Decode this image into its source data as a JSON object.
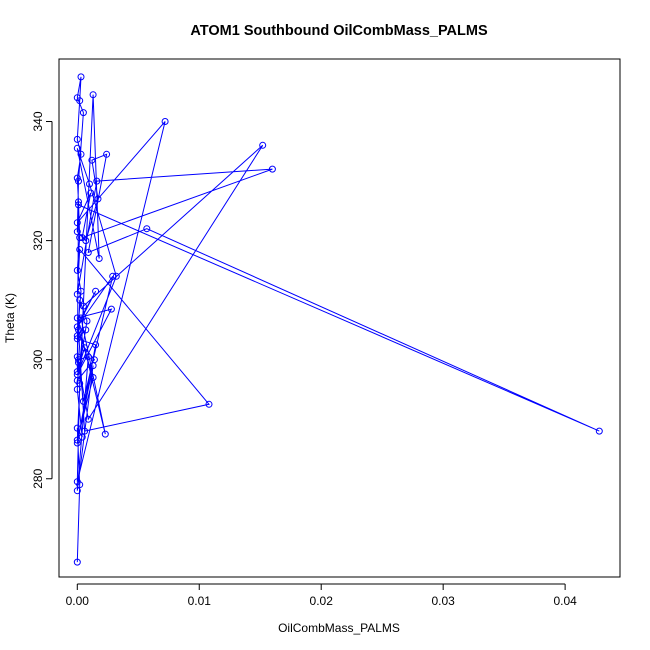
{
  "chart_data": {
    "type": "line",
    "title": "ATOM1 Southbound OilCombMass_PALMS",
    "xlabel": "OilCombMass_PALMS",
    "ylabel": "Theta (K)",
    "xlim": [
      -0.0015,
      0.0445
    ],
    "ylim": [
      263.5,
      350.5
    ],
    "xticks": [
      0.0,
      0.01,
      0.02,
      0.03,
      0.04
    ],
    "xtick_labels": [
      "0.00",
      "0.01",
      "0.02",
      "0.03",
      "0.04"
    ],
    "yticks": [
      280,
      300,
      320,
      340
    ],
    "ytick_labels": [
      "280",
      "300",
      "320",
      "340"
    ],
    "grid": false,
    "legend": "none",
    "markers": "open-circle",
    "series": [
      {
        "color": "#0000ff",
        "points": [
          [
            0.0,
            266.0
          ],
          [
            0.0002,
            279.0
          ],
          [
            0.0,
            288.5
          ],
          [
            0.0004,
            287.0
          ],
          [
            0.0,
            295.0
          ],
          [
            0.0001,
            299.5
          ],
          [
            0.0,
            304.0
          ],
          [
            0.0003,
            311.5
          ],
          [
            0.0,
            315.0
          ],
          [
            0.0002,
            320.5
          ],
          [
            0.0001,
            326.5
          ],
          [
            0.0,
            330.5
          ],
          [
            0.0003,
            334.5
          ],
          [
            0.0,
            337.0
          ],
          [
            0.0002,
            343.5
          ],
          [
            0.0003,
            347.5
          ],
          [
            0.0,
            344.0
          ],
          [
            0.0005,
            341.5
          ],
          [
            0.0001,
            330.0
          ],
          [
            0.0,
            321.5
          ],
          [
            0.0007,
            320.0
          ],
          [
            0.0017,
            327.0
          ],
          [
            0.0012,
            333.5
          ],
          [
            0.0024,
            334.5
          ],
          [
            0.0009,
            318.0
          ],
          [
            0.0057,
            322.0
          ],
          [
            0.0428,
            288.0
          ],
          [
            0.0001,
            326.0
          ],
          [
            0.0,
            298.0
          ],
          [
            0.0006,
            302.0
          ],
          [
            0.0014,
            300.0
          ],
          [
            0.0,
            296.5
          ],
          [
            0.0008,
            306.5
          ],
          [
            0.0002,
            310.0
          ],
          [
            0.0,
            300.5
          ],
          [
            0.0009,
            290.0
          ],
          [
            0.0152,
            336.0
          ],
          [
            0.0005,
            309.0
          ],
          [
            0.0,
            286.5
          ],
          [
            0.0013,
            297.0
          ],
          [
            0.0001,
            305.0
          ],
          [
            0.0006,
            288.0
          ],
          [
            0.0108,
            292.5
          ],
          [
            0.0002,
            318.5
          ],
          [
            0.0,
            311.0
          ],
          [
            0.0016,
            330.0
          ],
          [
            0.016,
            332.0
          ],
          [
            0.0004,
            320.5
          ],
          [
            0.0011,
            328.0
          ],
          [
            0.0,
            323.0
          ],
          [
            0.0072,
            340.0
          ],
          [
            0.0,
            279.5
          ],
          [
            0.0002,
            296.0
          ],
          [
            0.0013,
            344.5
          ],
          [
            0.0018,
            317.0
          ],
          [
            0.0,
            335.5
          ],
          [
            0.001,
            329.5
          ],
          [
            0.0032,
            314.0
          ],
          [
            0.0,
            297.5
          ],
          [
            0.0028,
            308.5
          ],
          [
            0.0,
            307.0
          ],
          [
            0.0023,
            287.5
          ],
          [
            0.0003,
            307.0
          ],
          [
            0.0015,
            311.5
          ],
          [
            0.0,
            305.5
          ],
          [
            0.0029,
            314.0
          ],
          [
            0.0005,
            293.0
          ],
          [
            0.0001,
            300.0
          ],
          [
            0.0009,
            300.5
          ],
          [
            0.0,
            278.0
          ],
          [
            0.0013,
            299.0
          ],
          [
            0.0,
            286.0
          ],
          [
            0.0015,
            302.5
          ],
          [
            0.0,
            303.5
          ],
          [
            0.0007,
            305.0
          ]
        ]
      }
    ]
  }
}
